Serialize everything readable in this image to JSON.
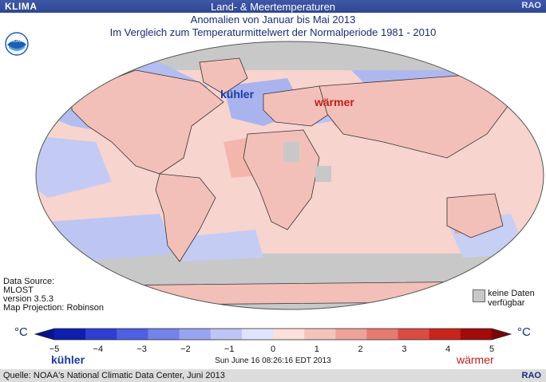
{
  "header": {
    "left": "KLIMA",
    "title": "Land- & Meertemperaturen",
    "right": "RAO",
    "subtitle": "Anomalien von Januar bis Mai 2013",
    "comparison": "Im Vergleich zum Temperaturmittelwert der Normalperiode 1981 - 2010"
  },
  "map": {
    "label_cooler": "kühler",
    "label_warmer": "wärmer",
    "land_color": "#f4c9c3",
    "cool_color": "#aeb9f0",
    "warm_color": "#f29a90",
    "nodata_color": "#c8c8c8",
    "projection_outline": "robinson-oval"
  },
  "meta": {
    "line1": "Data Source:",
    "line2": "MLOST",
    "line3": "version 3.5.3",
    "line4": "Map Projection: Robinson"
  },
  "legend_nodata": {
    "line1": "keine Daten",
    "line2": "verfügbar"
  },
  "colorbar": {
    "unit": "°C",
    "min": -5,
    "max": 5,
    "ticks": [
      "−5",
      "−4",
      "−3",
      "−2",
      "−1",
      "0",
      "1",
      "2",
      "3",
      "4",
      "5"
    ],
    "colors_cool": [
      "#0e1fb0",
      "#2f3fd2",
      "#5060e3",
      "#7383ea",
      "#98a4ef",
      "#bcc5f5",
      "#dfe3fb"
    ],
    "colors_warm": [
      "#fbe0dc",
      "#f5c3bd",
      "#eea29a",
      "#e57a70",
      "#d94c43",
      "#c8251d",
      "#a30a0a"
    ],
    "label_cool": "kühler",
    "label_warm": "wärmer",
    "timestamp": "Sun June 16 08:26:16 EDT 2013"
  },
  "footer": {
    "source": "Quelle: NOAA's National Climatic Data Center, Juni 2013",
    "rao": "RAO"
  },
  "logo": {
    "icon": "noaa-logo-icon",
    "text": "NOAA",
    "color": "#1b5fb8"
  }
}
